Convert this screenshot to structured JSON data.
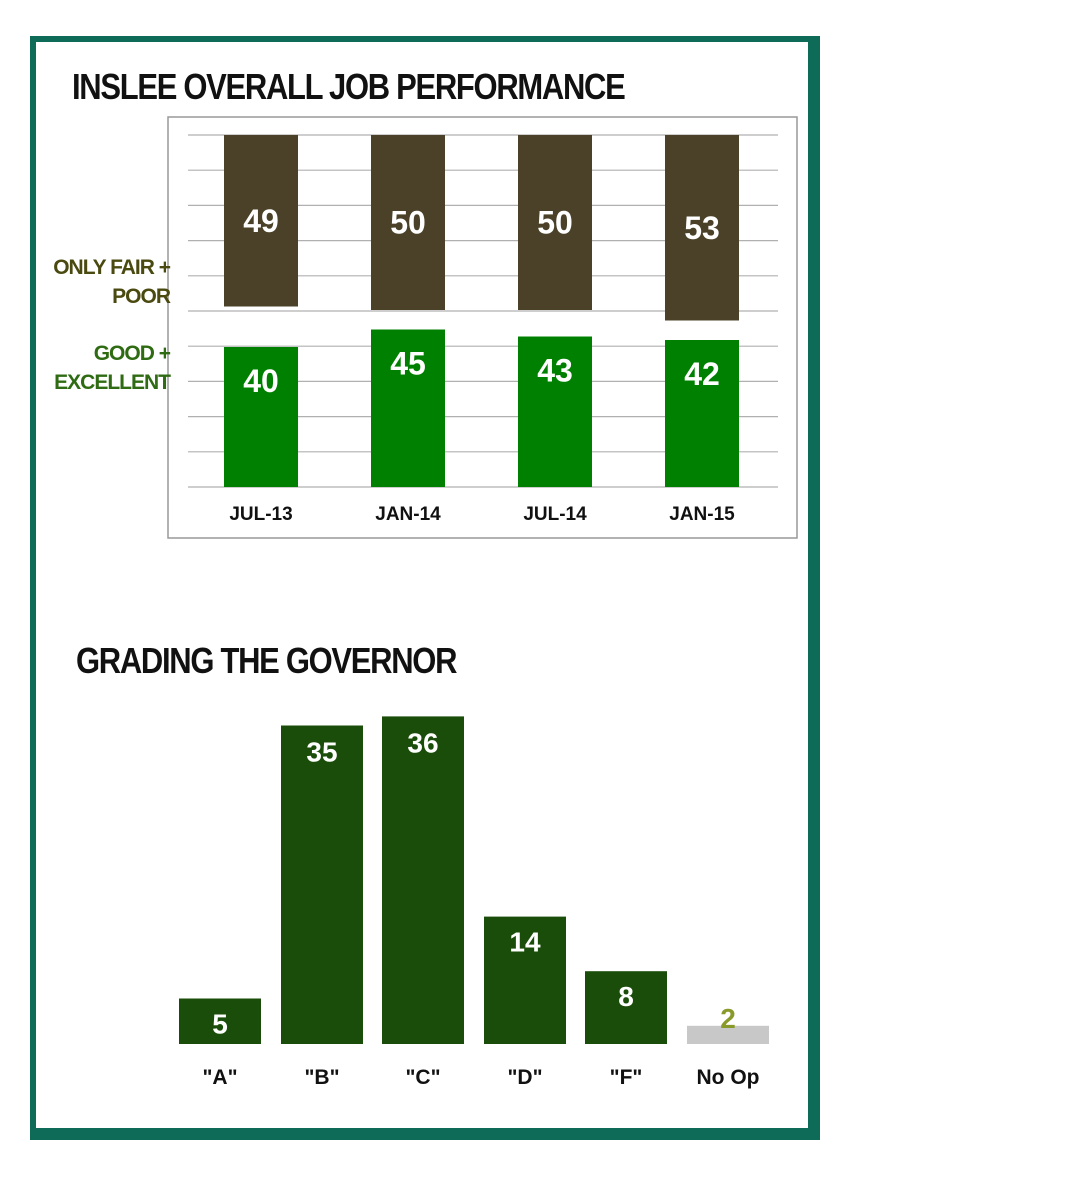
{
  "colors": {
    "frame": "#0d6b57",
    "poor_bar": "#4a4128",
    "good_bar": "#008000",
    "grade_bar": "#1a4d0a",
    "no_opinion_bar": "#c8c8c8",
    "poor_label": "#4a4a10",
    "good_label": "#2e6b12",
    "no_opinion_value": "#8a9a2a"
  },
  "chart_data": [
    {
      "type": "bar",
      "title": "INSLEE OVERALL JOB PERFORMANCE",
      "categories": [
        "JUL-13",
        "JAN-14",
        "JUL-14",
        "JAN-15"
      ],
      "series": [
        {
          "name": "ONLY FAIR + POOR",
          "label_lines": [
            "ONLY FAIR +",
            "POOR"
          ],
          "values": [
            49,
            50,
            50,
            53
          ]
        },
        {
          "name": "GOOD + EXCELLENT",
          "label_lines": [
            "GOOD +",
            "EXCELLENT"
          ],
          "values": [
            40,
            45,
            43,
            42
          ]
        }
      ],
      "grid": true,
      "legend": "left"
    },
    {
      "type": "bar",
      "title": "GRADING THE GOVERNOR",
      "categories": [
        "\"A\"",
        "\"B\"",
        "\"C\"",
        "\"D\"",
        "\"F\"",
        "No Op"
      ],
      "values": [
        5,
        35,
        36,
        14,
        8,
        2
      ],
      "grid": false
    }
  ]
}
